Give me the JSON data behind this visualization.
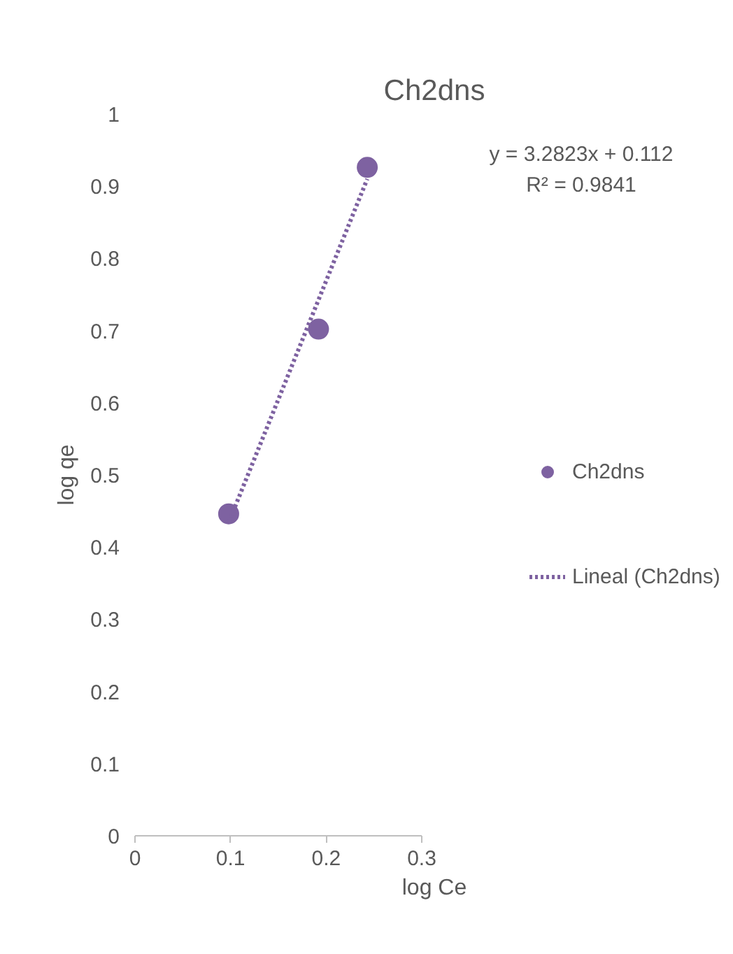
{
  "chart_data": {
    "type": "scatter",
    "title": "Ch2dns",
    "xlabel": "log Ce",
    "ylabel": "log qe",
    "xlim": [
      0,
      0.3
    ],
    "xticks": [
      0,
      0.1,
      0.2,
      0.3
    ],
    "ylim": [
      0,
      1
    ],
    "yticks": [
      0,
      0.1,
      0.2,
      0.3,
      0.4,
      0.5,
      0.6,
      0.7,
      0.8,
      0.9,
      1
    ],
    "grid": false,
    "legend": "right",
    "annotations": [
      "y = 3.2823x + 0.112",
      "R² = 0.9841"
    ],
    "series": [
      {
        "name": "Ch2dns",
        "marker": "circle",
        "color": "#7e62a1",
        "x": [
          0.098,
          0.192,
          0.243
        ],
        "values": [
          0.446,
          0.702,
          0.926
        ]
      },
      {
        "name": "Lineal (Ch2dns)",
        "type": "line",
        "line_style": "dotted",
        "color": "#7e62a1",
        "x": [
          0.098,
          0.243
        ],
        "values": [
          0.434,
          0.91
        ]
      }
    ]
  }
}
